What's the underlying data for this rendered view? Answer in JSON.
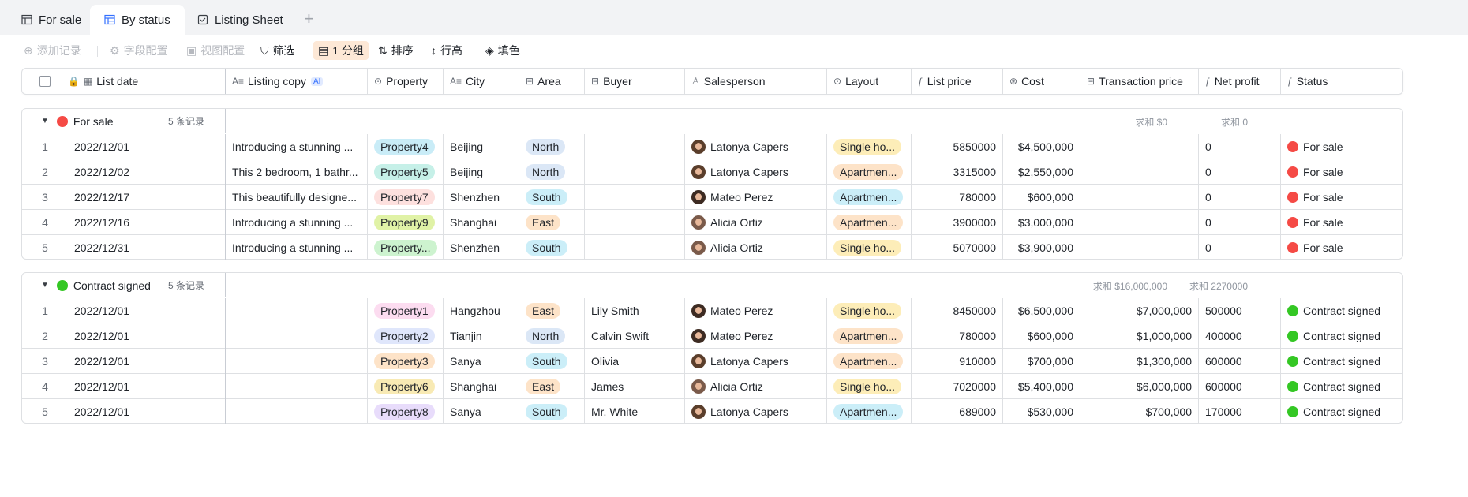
{
  "tabs": [
    {
      "label": "For sale",
      "icon": "grid-icon"
    },
    {
      "label": "By status",
      "icon": "grid-icon"
    },
    {
      "label": "Listing Sheet",
      "icon": "form-icon"
    }
  ],
  "toolbar": {
    "add_record": "添加记录",
    "field_config": "字段配置",
    "view_config": "视图配置",
    "filter": "筛选",
    "group": "1 分组",
    "sort": "排序",
    "row_height": "行高",
    "fill": "填色"
  },
  "columns": {
    "list_date": "List date",
    "listing_copy": "Listing copy",
    "ai_badge": "AI",
    "property": "Property",
    "city": "City",
    "area": "Area",
    "buyer": "Buyer",
    "salesperson": "Salesperson",
    "layout": "Layout",
    "list_price": "List price",
    "cost": "Cost",
    "transaction_price": "Transaction price",
    "net_profit": "Net profit",
    "status": "Status"
  },
  "colors": {
    "for_sale": "#f54a45",
    "contract_signed": "#34c724",
    "accent": "#3370ff"
  },
  "groups": [
    {
      "name": "For sale",
      "count": "5 条记录",
      "sum_transaction": "求和 $0",
      "sum_profit": "求和 0",
      "rows": [
        {
          "idx": "1",
          "date": "2022/12/01",
          "copy": "Introducing a stunning ...",
          "property": "Property4",
          "city": "Beijing",
          "area": "North",
          "buyer": "",
          "salesperson": "Latonya Capers",
          "layout": "Single ho...",
          "list_price": "5850000",
          "cost": "$4,500,000",
          "transaction": "",
          "profit": "0",
          "status": "For sale"
        },
        {
          "idx": "2",
          "date": "2022/12/02",
          "copy": "This 2 bedroom, 1 bathr...",
          "property": "Property5",
          "city": "Beijing",
          "area": "North",
          "buyer": "",
          "salesperson": "Latonya Capers",
          "layout": "Apartmen...",
          "list_price": "3315000",
          "cost": "$2,550,000",
          "transaction": "",
          "profit": "0",
          "status": "For sale"
        },
        {
          "idx": "3",
          "date": "2022/12/17",
          "copy": "This beautifully designe...",
          "property": "Property7",
          "city": "Shenzhen",
          "area": "South",
          "buyer": "",
          "salesperson": "Mateo Perez",
          "layout": "Apartmen...",
          "list_price": "780000",
          "cost": "$600,000",
          "transaction": "",
          "profit": "0",
          "status": "For sale"
        },
        {
          "idx": "4",
          "date": "2022/12/16",
          "copy": "Introducing a stunning ...",
          "property": "Property9",
          "city": "Shanghai",
          "area": "East",
          "buyer": "",
          "salesperson": "Alicia Ortiz",
          "layout": "Apartmen...",
          "list_price": "3900000",
          "cost": "$3,000,000",
          "transaction": "",
          "profit": "0",
          "status": "For sale"
        },
        {
          "idx": "5",
          "date": "2022/12/31",
          "copy": "Introducing a stunning ...",
          "property": "Property...",
          "city": "Shenzhen",
          "area": "South",
          "buyer": "",
          "salesperson": "Alicia Ortiz",
          "layout": "Single ho...",
          "list_price": "5070000",
          "cost": "$3,900,000",
          "transaction": "",
          "profit": "0",
          "status": "For sale"
        }
      ]
    },
    {
      "name": "Contract signed",
      "count": "5 条记录",
      "sum_transaction": "求和 $16,000,000",
      "sum_profit": "求和 2270000",
      "rows": [
        {
          "idx": "1",
          "date": "2022/12/01",
          "copy": "",
          "property": "Property1",
          "city": "Hangzhou",
          "area": "East",
          "buyer": "Lily Smith",
          "salesperson": "Mateo Perez",
          "layout": "Single ho...",
          "list_price": "8450000",
          "cost": "$6,500,000",
          "transaction": "$7,000,000",
          "profit": "500000",
          "status": "Contract signed"
        },
        {
          "idx": "2",
          "date": "2022/12/01",
          "copy": "",
          "property": "Property2",
          "city": "Tianjin",
          "area": "North",
          "buyer": "Calvin Swift",
          "salesperson": "Mateo Perez",
          "layout": "Apartmen...",
          "list_price": "780000",
          "cost": "$600,000",
          "transaction": "$1,000,000",
          "profit": "400000",
          "status": "Contract signed"
        },
        {
          "idx": "3",
          "date": "2022/12/01",
          "copy": "",
          "property": "Property3",
          "city": "Sanya",
          "area": "South",
          "buyer": "Olivia",
          "salesperson": "Latonya Capers",
          "layout": "Apartmen...",
          "list_price": "910000",
          "cost": "$700,000",
          "transaction": "$1,300,000",
          "profit": "600000",
          "status": "Contract signed"
        },
        {
          "idx": "4",
          "date": "2022/12/01",
          "copy": "",
          "property": "Property6",
          "city": "Shanghai",
          "area": "East",
          "buyer": "James",
          "salesperson": "Alicia Ortiz",
          "layout": "Single ho...",
          "list_price": "7020000",
          "cost": "$5,400,000",
          "transaction": "$6,000,000",
          "profit": "600000",
          "status": "Contract signed"
        },
        {
          "idx": "5",
          "date": "2022/12/01",
          "copy": "",
          "property": "Property8",
          "city": "Sanya",
          "area": "South",
          "buyer": "Mr. White",
          "salesperson": "Latonya Capers",
          "layout": "Apartmen...",
          "list_price": "689000",
          "cost": "$530,000",
          "transaction": "$700,000",
          "profit": "170000",
          "status": "Contract signed"
        }
      ]
    }
  ]
}
